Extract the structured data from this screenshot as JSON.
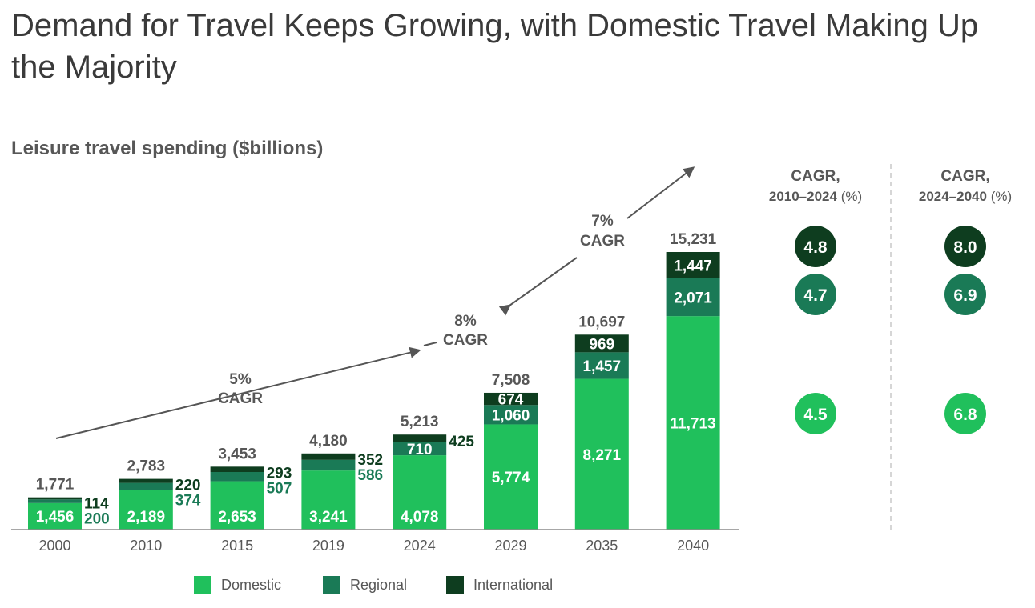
{
  "title": "Demand for Travel Keeps Growing, with Domestic Travel Making Up the Majority",
  "subtitle": "Leisure travel spending",
  "subtitle_unit": "($billions)",
  "colors": {
    "domestic": "#20c05c",
    "regional": "#1a7a56",
    "international": "#0e3d1f",
    "text": "#575757",
    "axis": "#8a8a8a",
    "arrow": "#555555"
  },
  "chart_data": [
    {
      "type": "bar",
      "stacked": true,
      "categories": [
        "2000",
        "2010",
        "2015",
        "2019",
        "2024",
        "2029",
        "2035",
        "2040"
      ],
      "series": [
        {
          "name": "Domestic",
          "values": [
            1456,
            2189,
            2653,
            3241,
            4078,
            5774,
            8271,
            11713
          ]
        },
        {
          "name": "Regional",
          "values": [
            200,
            374,
            507,
            586,
            710,
            1060,
            1457,
            2071
          ]
        },
        {
          "name": "International",
          "values": [
            114,
            220,
            293,
            352,
            425,
            674,
            969,
            1447
          ]
        }
      ],
      "totals": [
        1771,
        2783,
        3453,
        4180,
        5213,
        7508,
        10697,
        15231
      ],
      "total_labels": [
        "1,771",
        "2,783",
        "3,453",
        "4,180",
        "5,213",
        "7,508",
        "10,697",
        "15,231"
      ],
      "value_labels": {
        "Domestic": [
          "1,456",
          "2,189",
          "2,653",
          "3,241",
          "4,078",
          "5,774",
          "8,271",
          "11,713"
        ],
        "Regional": [
          "200",
          "374",
          "507",
          "586",
          "710",
          "1,060",
          "1,457",
          "2,071"
        ],
        "International": [
          "114",
          "220",
          "293",
          "352",
          "425",
          "674",
          "969",
          "1,447"
        ]
      },
      "ylim": [
        0,
        15231
      ],
      "legend_position": "bottom",
      "annotations": [
        {
          "line1": "5%",
          "line2": "CAGR"
        },
        {
          "line1": "8%",
          "line2": "CAGR"
        },
        {
          "line1": "7%",
          "line2": "CAGR"
        }
      ]
    },
    {
      "type": "table",
      "columns": [
        {
          "header_line1": "CAGR,",
          "header_line2": "2010–2024",
          "header_unit": "(%)",
          "values": [
            "4.8",
            "4.7",
            "4.5"
          ]
        },
        {
          "header_line1": "CAGR,",
          "header_line2": "2024–2040",
          "header_unit": "(%)",
          "values": [
            "8.0",
            "6.9",
            "6.8"
          ]
        }
      ],
      "rows": [
        "International",
        "Regional",
        "Domestic"
      ]
    }
  ],
  "legend": [
    {
      "label": "Domestic",
      "color": "#20c05c"
    },
    {
      "label": "Regional",
      "color": "#1a7a56"
    },
    {
      "label": "International",
      "color": "#0e3d1f"
    }
  ]
}
